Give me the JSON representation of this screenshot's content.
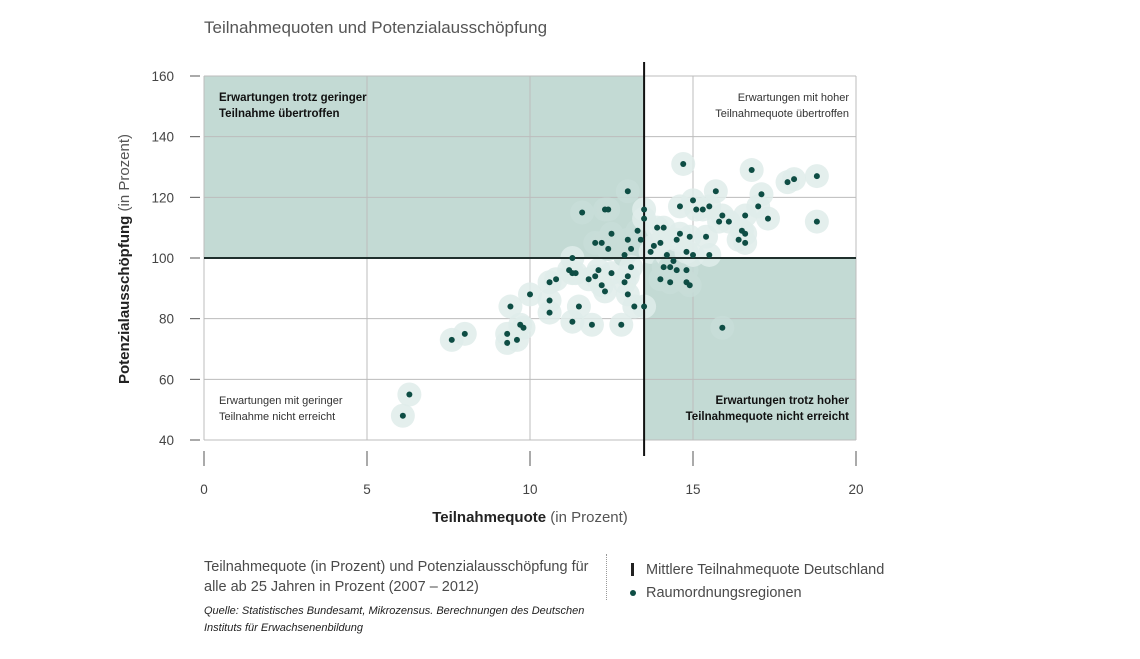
{
  "title": "Teilnahmequoten und Potenzialausschöpfung",
  "caption": "Teilnahmequote (in Prozent) und Potenzialausschöpfung für alle ab 25 Jahren in Prozent (2007 – 2012)",
  "source": "Quelle: Statistisches Bundesamt, Mikrozensus. Berechnungen des Deutschen Instituts für Erwachsenenbildung",
  "legend": {
    "mean_line": "Mittlere Teilnahmequote Deutschland",
    "regions": "Raumordnungsregionen"
  },
  "colors": {
    "quadrant_fill": "#c3dad4",
    "halo": "#dfecea",
    "halo_strong": "#c8ddd8",
    "dot": "#0e4d44",
    "grid": "#bcbcbc",
    "reference": "#1f2f2c"
  },
  "chart_data": {
    "type": "scatter",
    "title": "Teilnahmequoten und Potenzialausschöpfung",
    "xlabel_bold": "Teilnahmequote",
    "xlabel_rest": " (in Prozent)",
    "ylabel_bold": "Potenzialausschöpfung",
    "ylabel_rest": " (in Prozent)",
    "xlim": [
      0,
      20
    ],
    "ylim": [
      40,
      160
    ],
    "x_ticks": [
      0,
      5,
      10,
      15,
      20
    ],
    "y_ticks": [
      40,
      60,
      80,
      100,
      120,
      140,
      160
    ],
    "grid": true,
    "reference_lines": {
      "x": 13.5,
      "y": 100
    },
    "quadrants": [
      {
        "id": "top-left",
        "lines": [
          "Erwartungen trotz geringer",
          "Teilnahme übertroffen"
        ],
        "bold": true,
        "shaded": true
      },
      {
        "id": "top-right",
        "lines": [
          "Erwartungen mit hoher",
          "Teilnahmequote übertroffen"
        ],
        "bold": false,
        "shaded": false
      },
      {
        "id": "bottom-left",
        "lines": [
          "Erwartungen mit geringer",
          "Teilnahme nicht erreicht"
        ],
        "bold": false,
        "shaded": false
      },
      {
        "id": "bottom-right",
        "lines": [
          "Erwartungen trotz hoher",
          "Teilnahmequote nicht erreicht"
        ],
        "bold": true,
        "shaded": true
      }
    ],
    "points": [
      [
        6.1,
        48
      ],
      [
        6.3,
        55
      ],
      [
        7.6,
        73
      ],
      [
        8.0,
        75
      ],
      [
        9.3,
        75
      ],
      [
        9.3,
        72
      ],
      [
        9.4,
        84
      ],
      [
        9.6,
        73
      ],
      [
        9.7,
        78
      ],
      [
        9.8,
        77
      ],
      [
        10.0,
        88
      ],
      [
        10.6,
        82
      ],
      [
        10.6,
        92
      ],
      [
        10.6,
        86
      ],
      [
        10.8,
        93
      ],
      [
        11.2,
        96
      ],
      [
        11.3,
        100
      ],
      [
        11.3,
        95
      ],
      [
        11.3,
        79
      ],
      [
        11.4,
        95
      ],
      [
        11.5,
        84
      ],
      [
        11.6,
        115
      ],
      [
        11.8,
        93
      ],
      [
        11.9,
        78
      ],
      [
        12.0,
        94
      ],
      [
        12.0,
        105
      ],
      [
        12.1,
        96
      ],
      [
        12.2,
        105
      ],
      [
        12.2,
        91
      ],
      [
        12.3,
        89
      ],
      [
        12.3,
        116
      ],
      [
        12.4,
        103
      ],
      [
        12.4,
        116
      ],
      [
        12.5,
        108
      ],
      [
        12.5,
        95
      ],
      [
        12.8,
        78
      ],
      [
        12.9,
        101
      ],
      [
        12.9,
        92
      ],
      [
        13.0,
        94
      ],
      [
        13.0,
        106
      ],
      [
        13.0,
        88
      ],
      [
        13.0,
        122
      ],
      [
        13.1,
        103
      ],
      [
        13.1,
        97
      ],
      [
        13.2,
        84
      ],
      [
        13.3,
        109
      ],
      [
        13.4,
        106
      ],
      [
        13.5,
        84
      ],
      [
        13.5,
        116
      ],
      [
        13.5,
        113
      ],
      [
        13.7,
        102
      ],
      [
        13.8,
        104
      ],
      [
        13.9,
        110
      ],
      [
        14.0,
        105
      ],
      [
        14.0,
        93
      ],
      [
        14.1,
        97
      ],
      [
        14.1,
        110
      ],
      [
        14.2,
        101
      ],
      [
        14.3,
        97
      ],
      [
        14.3,
        92
      ],
      [
        14.4,
        99
      ],
      [
        14.5,
        106
      ],
      [
        14.5,
        96
      ],
      [
        14.6,
        108
      ],
      [
        14.6,
        117
      ],
      [
        14.7,
        131
      ],
      [
        14.8,
        96
      ],
      [
        14.8,
        102
      ],
      [
        14.8,
        92
      ],
      [
        14.9,
        91
      ],
      [
        14.9,
        107
      ],
      [
        15.0,
        101
      ],
      [
        15.0,
        119
      ],
      [
        15.1,
        116
      ],
      [
        15.3,
        116
      ],
      [
        15.4,
        107
      ],
      [
        15.5,
        101
      ],
      [
        15.5,
        117
      ],
      [
        15.7,
        122
      ],
      [
        15.8,
        112
      ],
      [
        15.9,
        114
      ],
      [
        15.9,
        77
      ],
      [
        16.1,
        112
      ],
      [
        16.4,
        106
      ],
      [
        16.5,
        109
      ],
      [
        16.6,
        108
      ],
      [
        16.6,
        105
      ],
      [
        16.6,
        114
      ],
      [
        16.8,
        129
      ],
      [
        17.0,
        117
      ],
      [
        17.1,
        121
      ],
      [
        17.3,
        113
      ],
      [
        17.9,
        125
      ],
      [
        18.1,
        126
      ],
      [
        18.8,
        127
      ],
      [
        18.8,
        112
      ]
    ]
  }
}
